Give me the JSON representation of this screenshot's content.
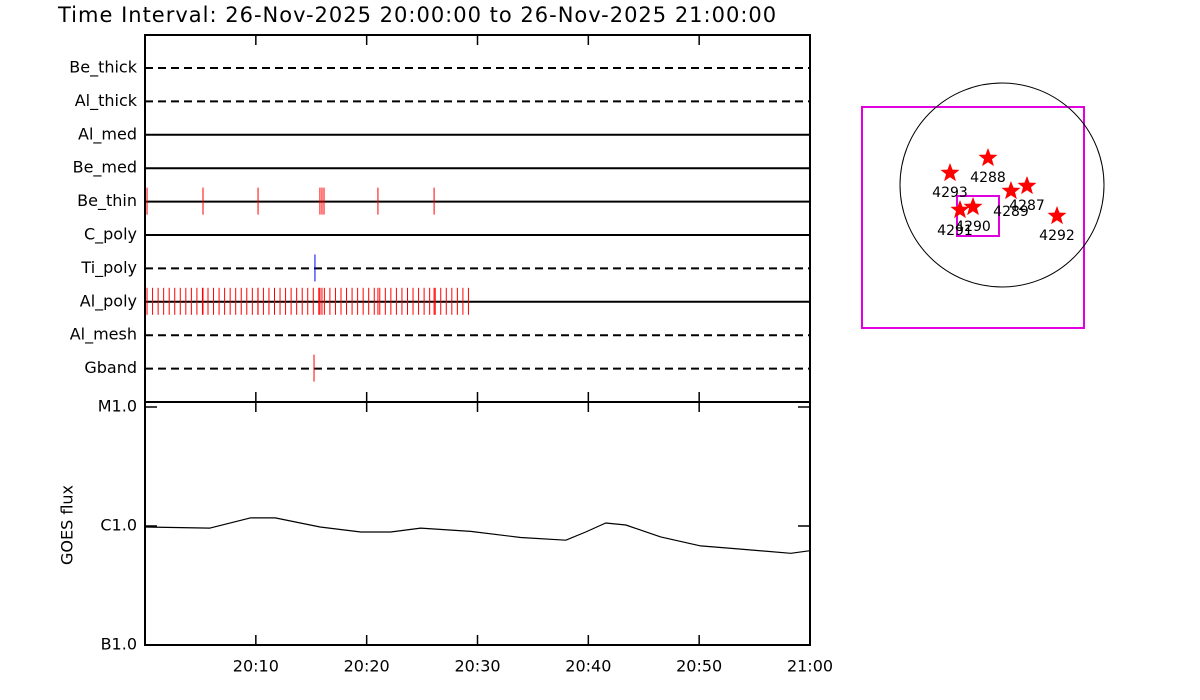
{
  "title": "Time Interval: 26-Nov-2025 20:00:00 to 26-Nov-2025 21:00:00",
  "chart_data": [
    {
      "type": "timeline",
      "xlim": [
        "20:00:00",
        "21:00:00"
      ],
      "rows": [
        {
          "name": "Be_thick",
          "style": "dashed",
          "color": "#ff0000",
          "events": []
        },
        {
          "name": "Al_thick",
          "style": "dashed",
          "color": "#ff0000",
          "events": []
        },
        {
          "name": "Al_med",
          "style": "solid",
          "color": "#ff0000",
          "events": []
        },
        {
          "name": "Be_med",
          "style": "solid",
          "color": "#ff0000",
          "events": []
        },
        {
          "name": "Be_thin",
          "style": "solid",
          "color": "#ff0000",
          "events": [
            "20:00:11",
            "20:05:14",
            "20:10:12",
            "20:15:47",
            "20:15:58",
            "20:16:09",
            "20:21:01",
            "20:26:05"
          ]
        },
        {
          "name": "C_poly",
          "style": "solid",
          "color": "#ff0000",
          "events": []
        },
        {
          "name": "Ti_poly",
          "style": "dashed",
          "color": "#0000ff",
          "events": [
            "20:15:20"
          ]
        },
        {
          "name": "Al_poly",
          "style": "solid",
          "color": "#ff0000",
          "events": [
            "20:00:11",
            "20:00:41",
            "20:01:11",
            "20:01:41",
            "20:02:11",
            "20:02:41",
            "20:03:11",
            "20:03:41",
            "20:04:11",
            "20:04:41",
            "20:05:11",
            "20:05:41",
            "20:06:11",
            "20:06:41",
            "20:07:11",
            "20:07:41",
            "20:08:11",
            "20:08:41",
            "20:09:11",
            "20:09:41",
            "20:10:11",
            "20:10:41",
            "20:11:11",
            "20:11:41",
            "20:12:11",
            "20:12:41",
            "20:13:11",
            "20:13:41",
            "20:14:11",
            "20:14:41",
            "20:15:11",
            "20:15:41",
            "20:16:11",
            "20:16:41",
            "20:17:11",
            "20:17:41",
            "20:18:11",
            "20:18:41",
            "20:19:11",
            "20:19:41",
            "20:20:11",
            "20:20:41",
            "20:21:11",
            "20:21:41",
            "20:22:11",
            "20:22:41",
            "20:23:11",
            "20:23:41",
            "20:24:11",
            "20:24:41",
            "20:25:11",
            "20:25:41",
            "20:26:11",
            "20:26:41",
            "20:27:11",
            "20:27:41",
            "20:28:11",
            "20:28:41",
            "20:29:11",
            "20:05:14",
            "20:10:12",
            "20:15:47",
            "20:15:58",
            "20:21:01",
            "20:26:05"
          ]
        },
        {
          "name": "Al_mesh",
          "style": "dashed",
          "color": "#ff0000",
          "events": []
        },
        {
          "name": "Gband",
          "style": "dashed",
          "color": "#ff0000",
          "events": [
            "20:15:15"
          ]
        }
      ]
    },
    {
      "type": "line",
      "ylabel": "GOES flux",
      "log_scale": true,
      "color": "#000000",
      "x": [
        "20:00:00",
        "20:05:52",
        "20:09:30",
        "20:11:45",
        "20:15:48",
        "20:19:28",
        "20:22:10",
        "20:24:52",
        "20:29:23",
        "20:33:54",
        "20:37:58",
        "20:39:46",
        "20:41:34",
        "20:43:23",
        "20:46:32",
        "20:50:08",
        "20:53:45",
        "20:58:16",
        "21:00:00"
      ],
      "values": [
        9.8e-07,
        9.6e-07,
        1.17e-06,
        1.17e-06,
        9.8e-07,
        8.9e-07,
        8.9e-07,
        9.6e-07,
        9e-07,
        8e-07,
        7.6e-07,
        8.9e-07,
        1.06e-06,
        1.02e-06,
        8.1e-07,
        6.8e-07,
        6.4e-07,
        5.9e-07,
        6.2e-07
      ],
      "xlim": [
        "20:00:00",
        "21:00:00"
      ],
      "xticks": [
        {
          "value": "20:10:00",
          "label": "20:10"
        },
        {
          "value": "20:20:00",
          "label": "20:20"
        },
        {
          "value": "20:30:00",
          "label": "20:30"
        },
        {
          "value": "20:40:00",
          "label": "20:40"
        },
        {
          "value": "20:50:00",
          "label": "20:50"
        },
        {
          "value": "21:00:00",
          "label": "21:00"
        }
      ],
      "ylim": [
        1e-07,
        1e-05
      ],
      "yticks": [
        {
          "value": 1e-07,
          "label": "B1.0"
        },
        {
          "value": 1e-06,
          "label": "C1.0"
        },
        {
          "value": 1e-05,
          "label": "M1.0"
        }
      ]
    }
  ],
  "map": {
    "regions": [
      "4288",
      "4293",
      "4289",
      "4287",
      "4290",
      "4291",
      "4292"
    ]
  }
}
